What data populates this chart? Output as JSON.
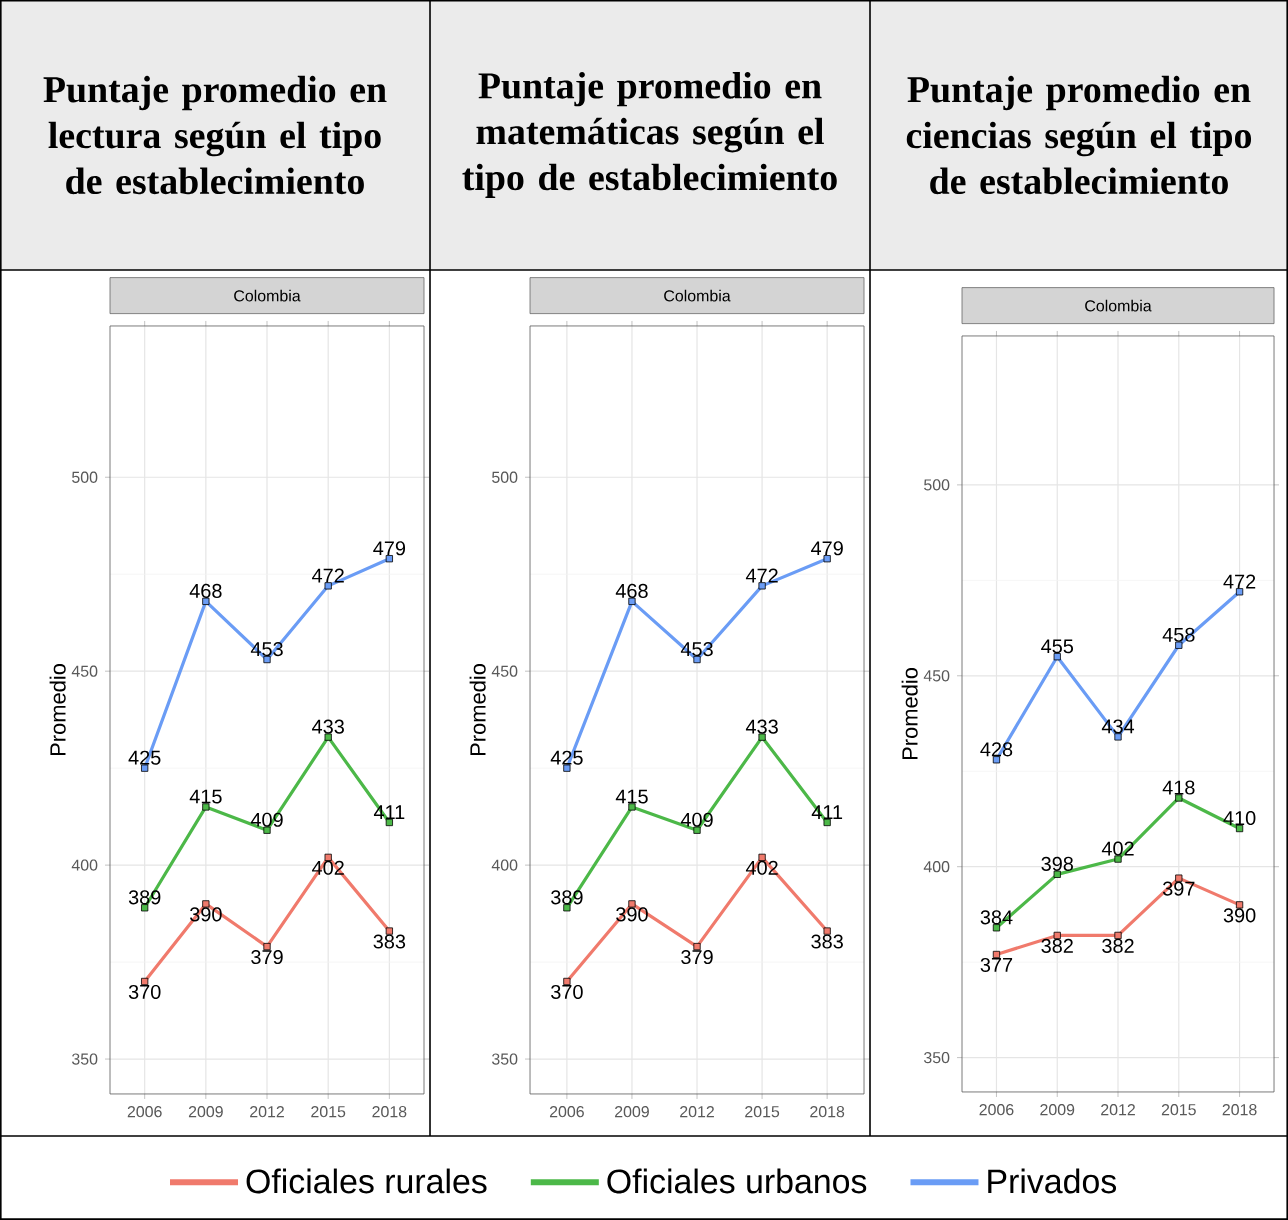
{
  "chart_data": [
    {
      "type": "line",
      "title": "Puntaje promedio en lectura según el tipo de establecimiento",
      "subtitle": "Colombia",
      "ylabel": "Promedio",
      "x": [
        2006,
        2009,
        2012,
        2015,
        2018
      ],
      "xlim": [
        2004.3,
        2019.7
      ],
      "ylim": [
        341,
        539
      ],
      "xticks": [
        2006,
        2009,
        2012,
        2015,
        2018
      ],
      "yticks": [
        350,
        400,
        450,
        500
      ],
      "grid": true,
      "legend": "bottom",
      "marker": "square",
      "line_style": "solid",
      "data_labels": true,
      "series": [
        {
          "name": "Oficiales rurales",
          "color": "#f07a6c",
          "values": [
            370,
            390,
            379,
            402,
            383
          ]
        },
        {
          "name": "Oficiales urbanos",
          "color": "#4cb848",
          "values": [
            389,
            415,
            409,
            433,
            411
          ]
        },
        {
          "name": "Privados",
          "color": "#6a9cf5",
          "values": [
            425,
            468,
            453,
            472,
            479
          ]
        }
      ]
    },
    {
      "type": "line",
      "title": "Puntaje promedio en matemáticas según el tipo de establecimiento",
      "subtitle": "Colombia",
      "ylabel": "Promedio",
      "x": [
        2006,
        2009,
        2012,
        2015,
        2018
      ],
      "xlim": [
        2004.3,
        2019.7
      ],
      "ylim": [
        341,
        539
      ],
      "xticks": [
        2006,
        2009,
        2012,
        2015,
        2018
      ],
      "yticks": [
        350,
        400,
        450,
        500
      ],
      "grid": true,
      "marker": "square",
      "line_style": "solid",
      "data_labels": true,
      "series": [
        {
          "color": "#f07a6c",
          "values": [
            370,
            390,
            379,
            402,
            383
          ]
        },
        {
          "color": "#4cb848",
          "values": [
            389,
            415,
            409,
            433,
            411
          ]
        },
        {
          "color": "#6a9cf5",
          "values": [
            425,
            468,
            453,
            472,
            479
          ]
        }
      ]
    },
    {
      "type": "line",
      "title": "Puntaje promedio en ciencias según el tipo de establecimiento",
      "subtitle": "Colombia",
      "ylabel": "Promedio",
      "x": [
        2006,
        2009,
        2012,
        2015,
        2018
      ],
      "xlim": [
        2004.3,
        2019.7
      ],
      "ylim": [
        341,
        539
      ],
      "xticks": [
        2006,
        2009,
        2012,
        2015,
        2018
      ],
      "yticks": [
        350,
        400,
        450,
        500
      ],
      "grid": true,
      "marker": "square",
      "line_style": "solid",
      "data_labels": true,
      "series": [
        {
          "color": "#f07a6c",
          "values": [
            377,
            382,
            382,
            397,
            390
          ]
        },
        {
          "color": "#4cb848",
          "values": [
            384,
            398,
            402,
            418,
            410
          ]
        },
        {
          "color": "#6a9cf5",
          "values": [
            428,
            455,
            434,
            458,
            472
          ]
        }
      ]
    }
  ]
}
